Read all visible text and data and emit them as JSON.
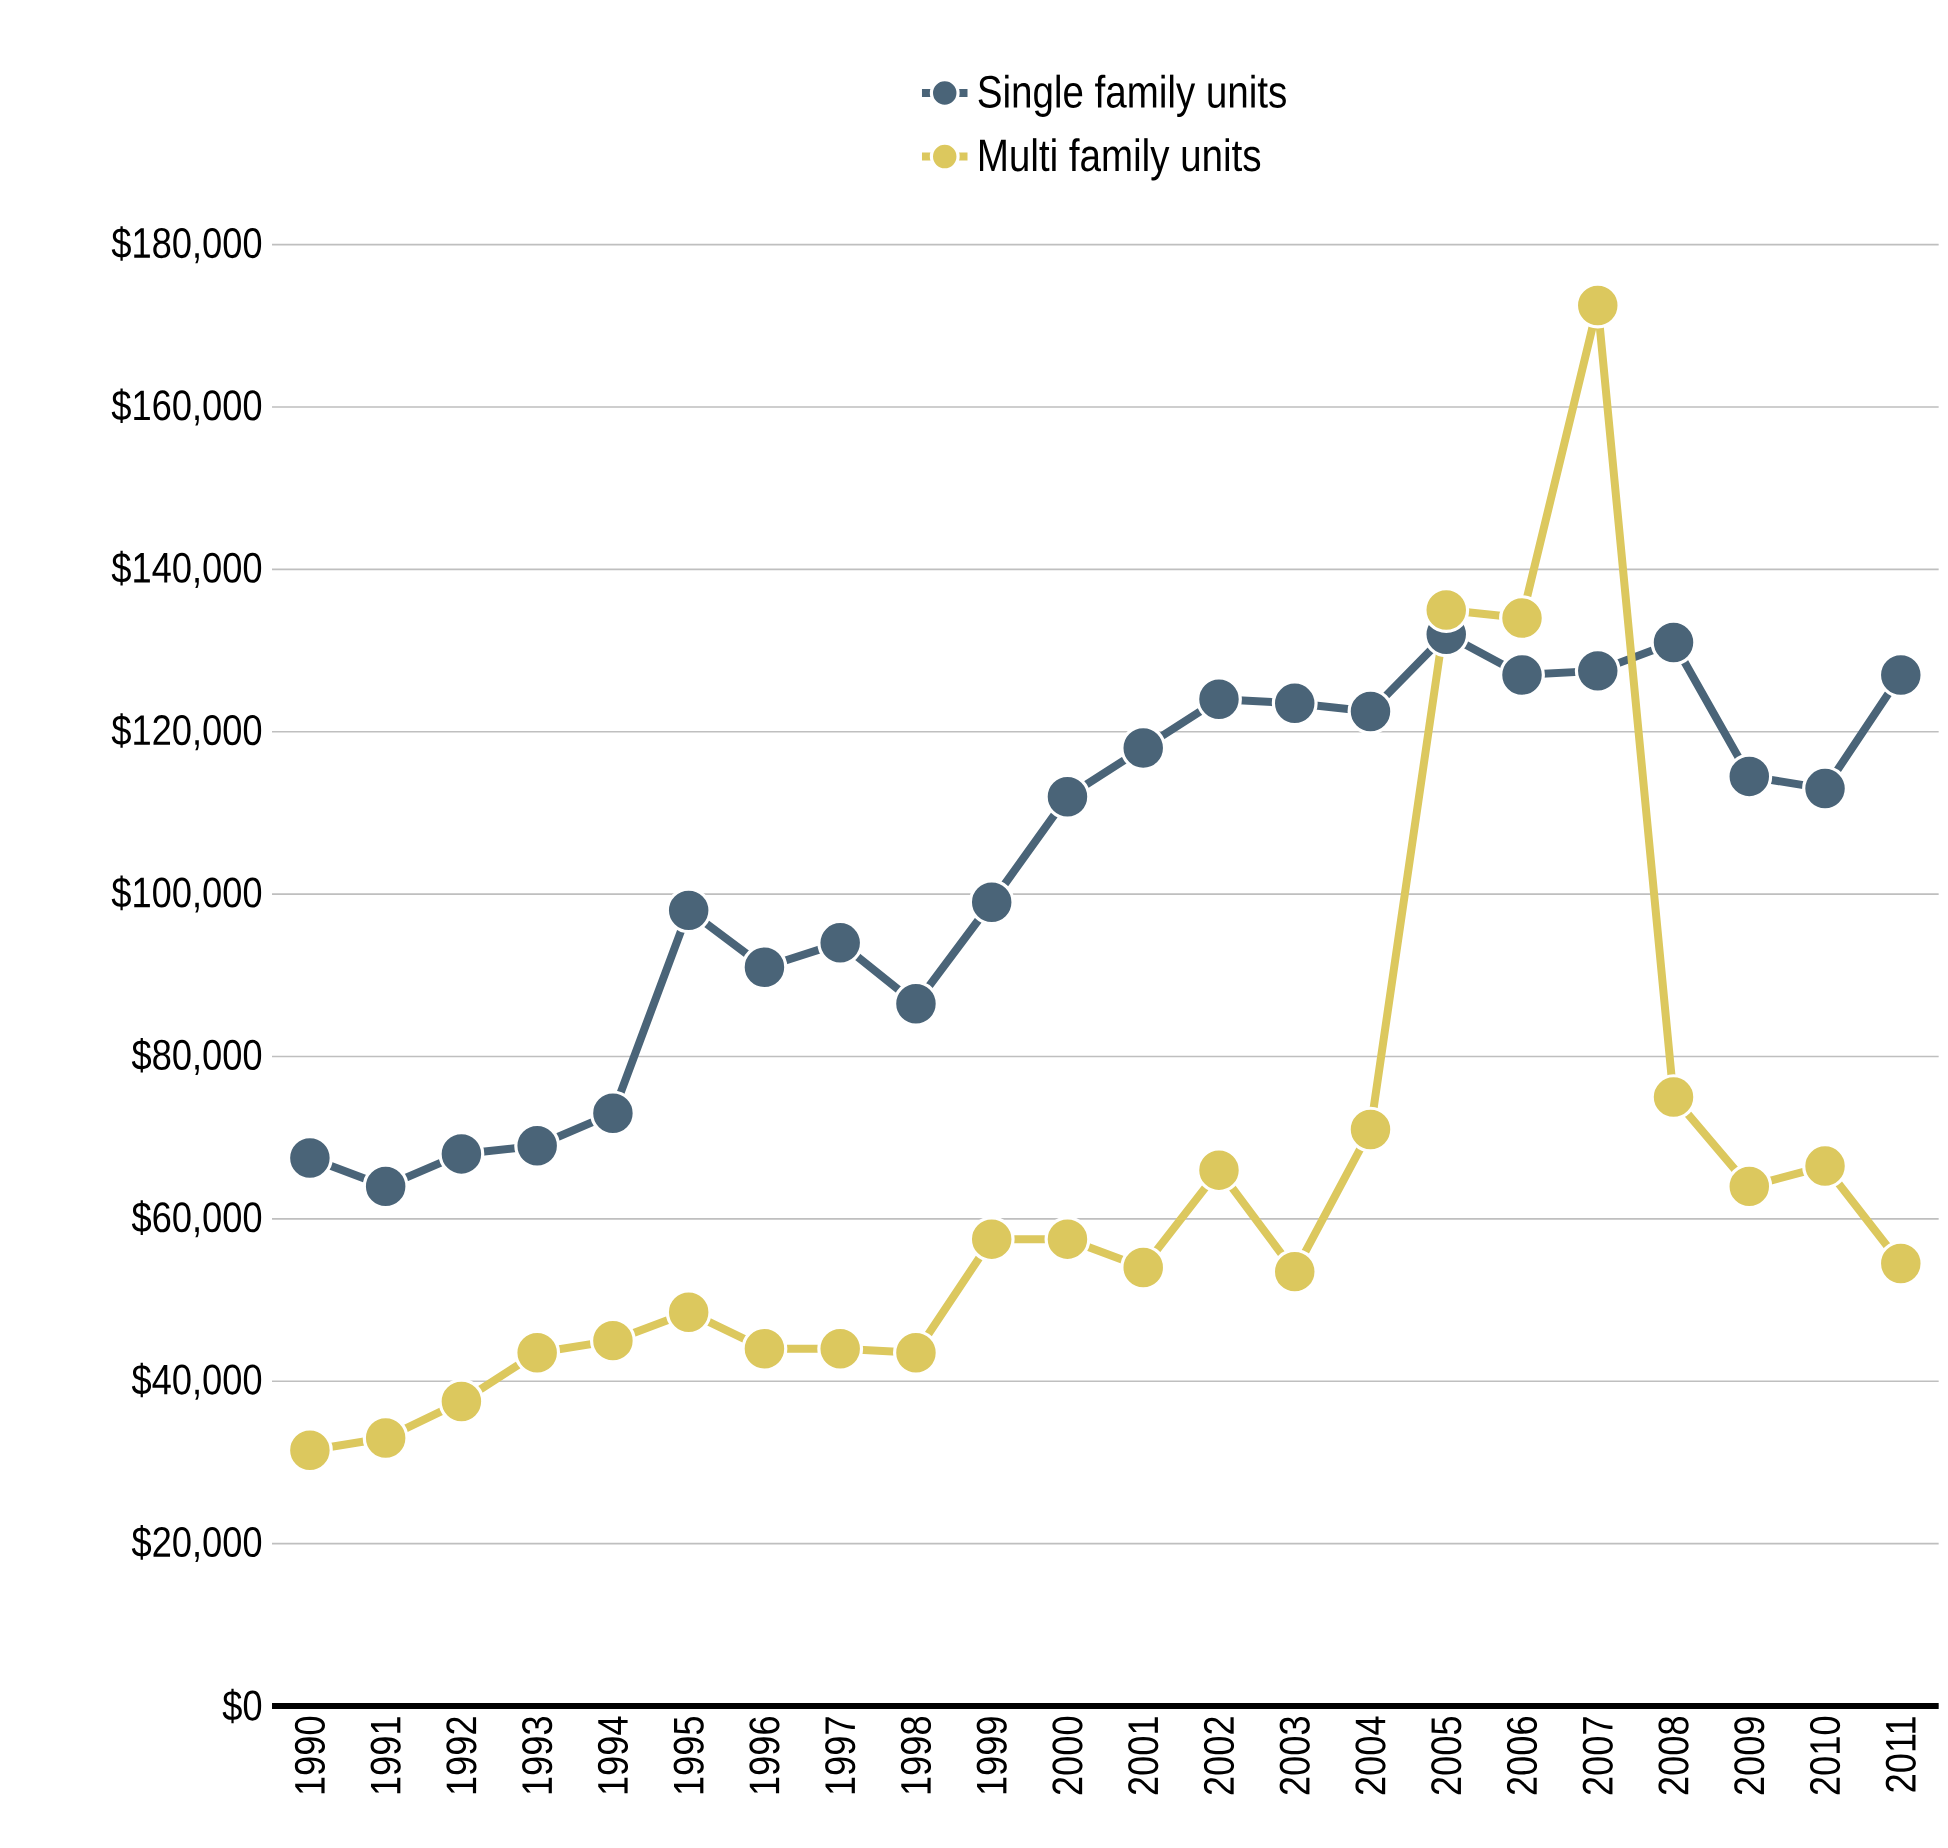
{
  "chart_data": {
    "type": "line",
    "categories": [
      "1990",
      "1991",
      "1992",
      "1993",
      "1994",
      "1995",
      "1996",
      "1997",
      "1998",
      "1999",
      "2000",
      "2001",
      "2002",
      "2003",
      "2004",
      "2005",
      "2006",
      "2007",
      "2008",
      "2009",
      "2010",
      "2011"
    ],
    "series": [
      {
        "name": "Single family units",
        "color": "#4a6478",
        "values": [
          67500,
          64000,
          68000,
          69000,
          73000,
          98000,
          91000,
          94000,
          86500,
          99000,
          112000,
          118000,
          124000,
          123500,
          122500,
          132000,
          127000,
          127500,
          131000,
          114500,
          113000,
          127000
        ]
      },
      {
        "name": "Multi family units",
        "color": "#dcc85e",
        "values": [
          31500,
          33000,
          37500,
          43500,
          45000,
          48500,
          44000,
          44000,
          43500,
          57500,
          57500,
          54000,
          66000,
          53500,
          71000,
          135000,
          134000,
          172500,
          75000,
          64000,
          66500,
          54500
        ]
      }
    ],
    "ylim": [
      0,
      180000
    ],
    "yticks": [
      {
        "value": 0,
        "label": "$0"
      },
      {
        "value": 20000,
        "label": "$20,000"
      },
      {
        "value": 40000,
        "label": "$40,000"
      },
      {
        "value": 60000,
        "label": "$60,000"
      },
      {
        "value": 80000,
        "label": "$80,000"
      },
      {
        "value": 100000,
        "label": "$100,000"
      },
      {
        "value": 120000,
        "label": "$120,000"
      },
      {
        "value": 140000,
        "label": "$140,000"
      },
      {
        "value": 160000,
        "label": "$160,000"
      },
      {
        "value": 180000,
        "label": "$180,000"
      }
    ],
    "grid": "y",
    "legend": "top",
    "marker": "circle",
    "line_style": "solid"
  }
}
